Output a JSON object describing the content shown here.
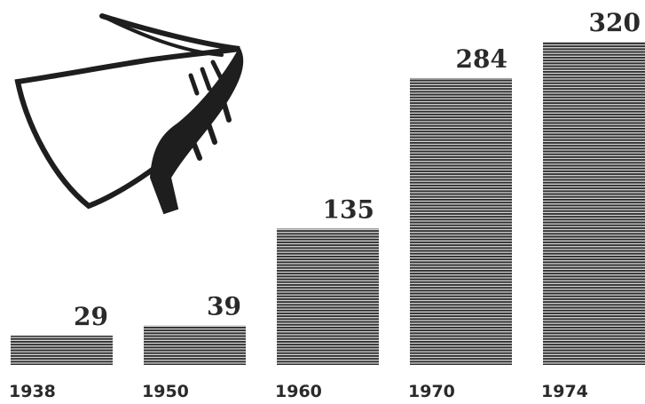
{
  "chart_data": {
    "type": "bar",
    "categories": [
      "1938",
      "1950",
      "1960",
      "1970",
      "1974"
    ],
    "values": [
      29,
      39,
      135,
      284,
      320
    ],
    "color": "#2e2e2e"
  }
}
